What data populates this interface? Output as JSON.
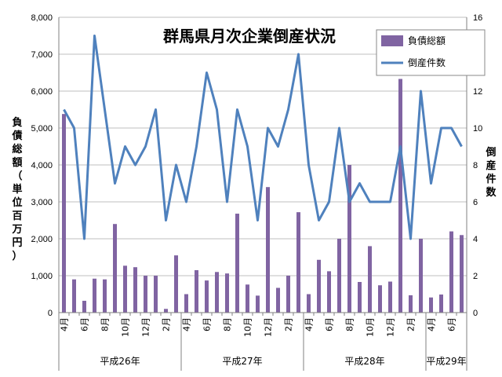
{
  "chart_data": {
    "type": "bar+line",
    "title": "群馬県月次企業倒産状況",
    "ylabel_left": "負債総額（単位百万円）",
    "ylabel_right": "倒産件数",
    "ylim_left": [
      0,
      8000
    ],
    "ylim_right": [
      0,
      16
    ],
    "left_ticks": [
      "0",
      "1,000",
      "2,000",
      "3,000",
      "4,000",
      "5,000",
      "6,000",
      "7,000",
      "8,000"
    ],
    "right_ticks": [
      "0",
      "2",
      "4",
      "6",
      "8",
      "10",
      "12",
      "14",
      "16"
    ],
    "month_labels": [
      "4月",
      "6月",
      "8月",
      "10月",
      "12月",
      "2月",
      "4月",
      "6月",
      "8月",
      "10月",
      "12月",
      "2月",
      "4月",
      "6月",
      "8月",
      "10月",
      "12月",
      "2月",
      "4月",
      "6月"
    ],
    "year_labels": [
      "平成26年",
      "平成27年",
      "平成28年",
      "平成29年"
    ],
    "legend": {
      "bar": "負債総額",
      "line": "倒産件数"
    },
    "series": [
      {
        "name": "負債総額",
        "type": "bar",
        "axis": "left",
        "values": [
          5380,
          900,
          320,
          920,
          900,
          2400,
          1270,
          1230,
          1000,
          1000,
          100,
          1550,
          500,
          1150,
          870,
          1100,
          1060,
          2680,
          760,
          460,
          3400,
          670,
          1000,
          2720,
          500,
          1430,
          1120,
          2000,
          4000,
          830,
          1800,
          740,
          840,
          6330,
          470,
          2000,
          410,
          490,
          2200,
          2100
        ]
      },
      {
        "name": "倒産件数",
        "type": "line",
        "axis": "right",
        "values": [
          11,
          10,
          4,
          15,
          11,
          7,
          9,
          8,
          9,
          11,
          5,
          8,
          6,
          9,
          13,
          11,
          6,
          11,
          9,
          5,
          10,
          9,
          11,
          14,
          8,
          5,
          6,
          10,
          6,
          7,
          6,
          6,
          6,
          9,
          4,
          12,
          7,
          10,
          10,
          9
        ]
      }
    ]
  }
}
